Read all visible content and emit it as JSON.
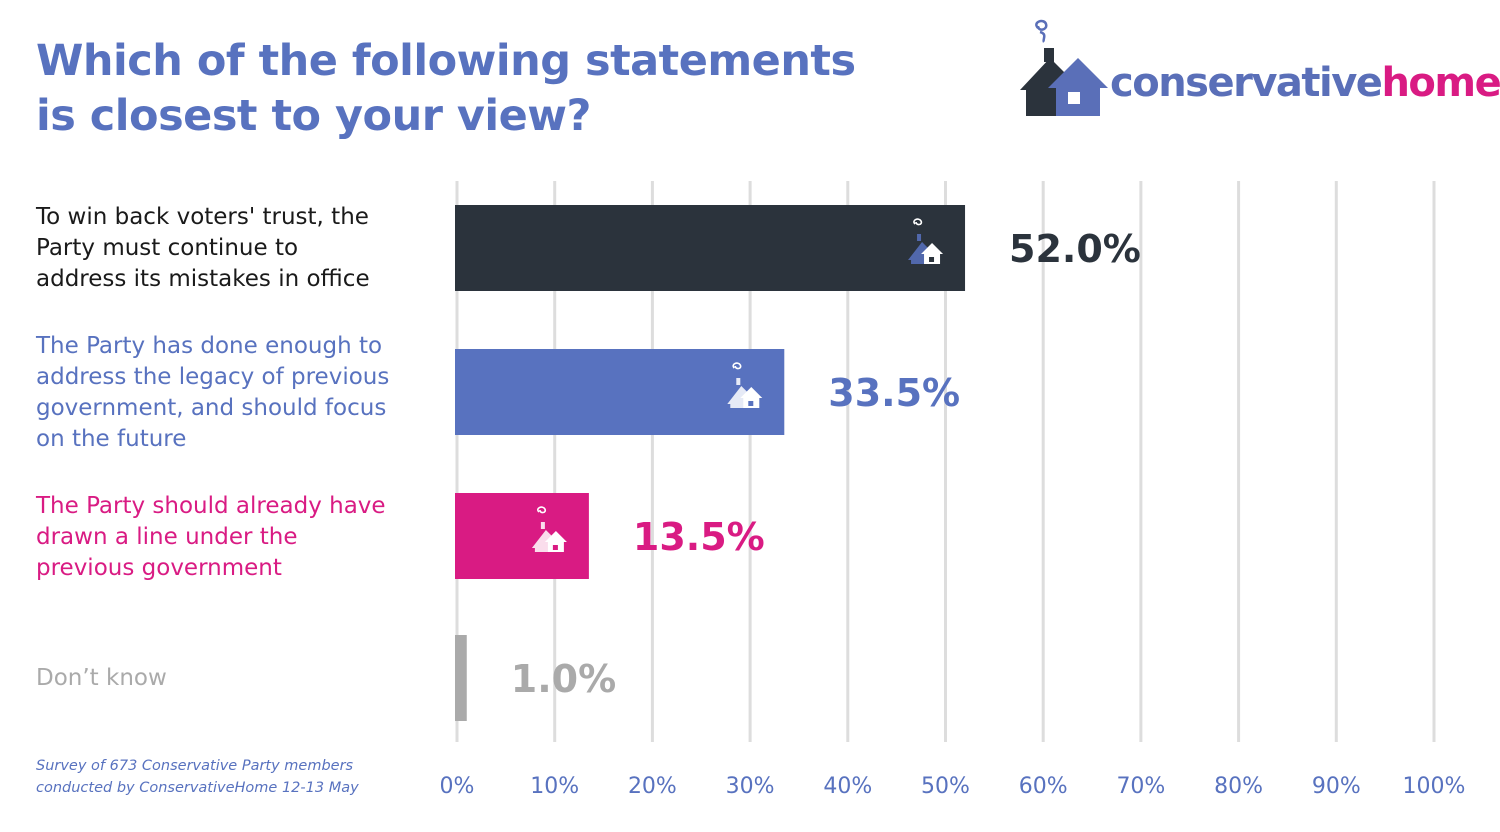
{
  "title_lines": [
    "Which of the following statements",
    "is closest to your view?"
  ],
  "logo": {
    "word_a": "conservative",
    "word_b": "home",
    "icon": "house-icon"
  },
  "footnote": [
    "Survey of 673 Conservative Party members",
    "conducted by ConservativeHome 12-13 May"
  ],
  "colors": {
    "title": "#5872bf",
    "dark": "#2b333c",
    "blue": "#5872bf",
    "pink": "#d91b83",
    "grey": "#aaaaaa",
    "grid": "#dddddd"
  },
  "chart_data": {
    "type": "bar",
    "orientation": "horizontal",
    "categories": [
      "To win back voters' trust, the Party must continue to address its mistakes in office",
      "The Party has done enough to address the legacy of previous government, and should focus on the future",
      "The Party should already have drawn a line under the previous government",
      "Don’t know"
    ],
    "category_lines": [
      [
        "To win back voters' trust, the",
        "Party must continue to",
        "address its mistakes in office"
      ],
      [
        "The Party has done enough to",
        "address the legacy of previous",
        "government, and should focus",
        "on the future"
      ],
      [
        "The Party should already have",
        "drawn a line under the",
        "previous government"
      ],
      [
        "Don’t know"
      ]
    ],
    "values": [
      52.0,
      33.5,
      13.5,
      1.0
    ],
    "value_labels": [
      "52.0%",
      "33.5%",
      "13.5%",
      "1.0%"
    ],
    "bar_colors": [
      "#2b333c",
      "#5872bf",
      "#d91b83",
      "#aaaaaa"
    ],
    "xlim": [
      0,
      100
    ],
    "xticks": [
      0,
      10,
      20,
      30,
      40,
      50,
      60,
      70,
      80,
      90,
      100
    ],
    "xtick_labels": [
      "0%",
      "10%",
      "20%",
      "30%",
      "40%",
      "50%",
      "60%",
      "70%",
      "80%",
      "90%",
      "100%"
    ],
    "grid": true
  }
}
